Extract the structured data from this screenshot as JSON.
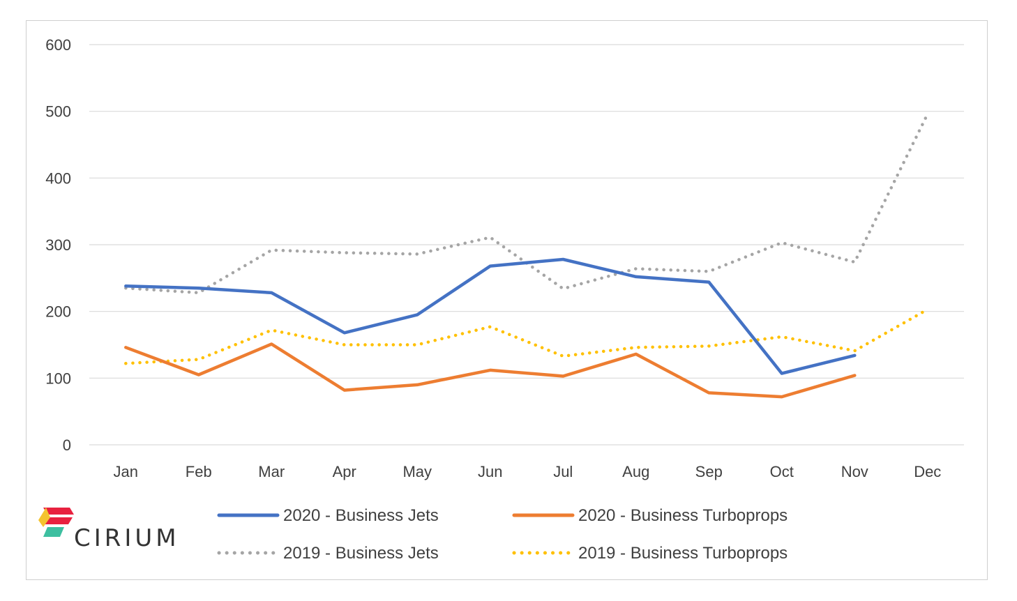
{
  "chart_data": {
    "type": "line",
    "categories": [
      "Jan",
      "Feb",
      "Mar",
      "Apr",
      "May",
      "Jun",
      "Jul",
      "Aug",
      "Sep",
      "Oct",
      "Nov",
      "Dec"
    ],
    "ylim": [
      0,
      600
    ],
    "yticks": [
      "0",
      "100",
      "200",
      "300",
      "400",
      "500",
      "600"
    ],
    "grid": true,
    "legend_position": "bottom",
    "series": [
      {
        "name": "2020 - Business Jets",
        "color": "#4472C4",
        "style": "solid",
        "values": [
          238,
          235,
          228,
          168,
          195,
          268,
          278,
          252,
          244,
          107,
          134,
          null
        ]
      },
      {
        "name": "2020 - Business Turboprops",
        "color": "#ED7D31",
        "style": "solid",
        "values": [
          146,
          105,
          151,
          82,
          90,
          112,
          103,
          136,
          78,
          72,
          104,
          null
        ]
      },
      {
        "name": "2019 - Business Jets",
        "color": "#A5A5A5",
        "style": "dotted",
        "values": [
          235,
          228,
          292,
          288,
          286,
          311,
          234,
          264,
          260,
          303,
          274,
          496
        ]
      },
      {
        "name": "2019 - Business Turboprops",
        "color": "#FFC000",
        "style": "dotted",
        "values": [
          122,
          128,
          172,
          150,
          150,
          177,
          133,
          146,
          148,
          162,
          141,
          203
        ]
      }
    ]
  },
  "logo": {
    "wordmark": "CIRIUM",
    "colors": [
      "#F4C430",
      "#E8213F",
      "#3DBFA0",
      "#1F8A70"
    ]
  }
}
